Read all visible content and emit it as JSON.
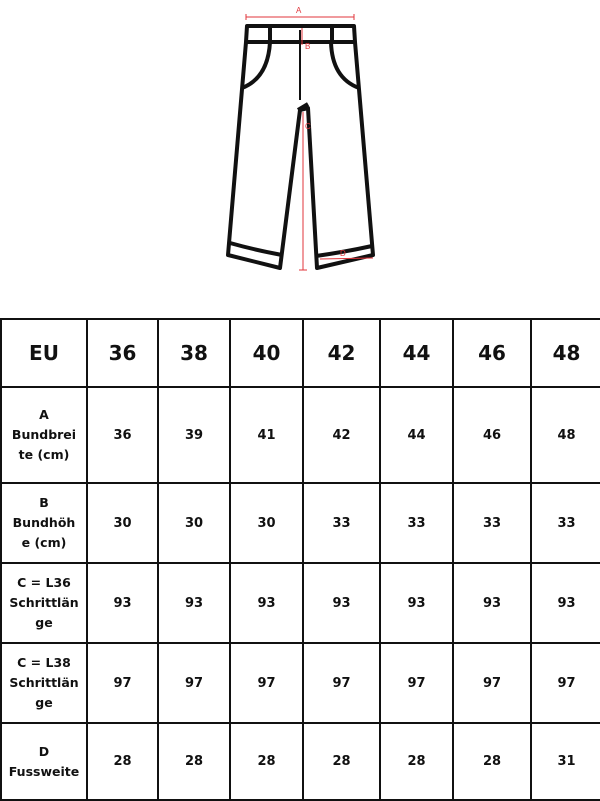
{
  "diagram": {
    "labels": {
      "a": "A",
      "b": "B",
      "c": "C",
      "d": "D"
    },
    "line_color": "#111111",
    "measure_color": "#e0353b"
  },
  "table": {
    "header": {
      "label": "EU",
      "sizes": [
        "36",
        "38",
        "40",
        "42",
        "44",
        "46",
        "48"
      ]
    },
    "rows": [
      {
        "label_lines": [
          "A",
          "Bundbrei",
          "te (cm)"
        ],
        "values": [
          "36",
          "39",
          "41",
          "42",
          "44",
          "46",
          "48"
        ]
      },
      {
        "label_lines": [
          "B",
          "Bundhöh",
          "e (cm)"
        ],
        "values": [
          "30",
          "30",
          "30",
          "33",
          "33",
          "33",
          "33"
        ]
      },
      {
        "label_lines": [
          "C = L36",
          "Schrittlän",
          "ge"
        ],
        "values": [
          "93",
          "93",
          "93",
          "93",
          "93",
          "93",
          "93"
        ]
      },
      {
        "label_lines": [
          "C = L38",
          "Schrittlän",
          "ge"
        ],
        "values": [
          "97",
          "97",
          "97",
          "97",
          "97",
          "97",
          "97"
        ]
      },
      {
        "label_lines": [
          "D",
          "Fussweite"
        ],
        "values": [
          "28",
          "28",
          "28",
          "28",
          "28",
          "28",
          "31"
        ]
      }
    ]
  }
}
